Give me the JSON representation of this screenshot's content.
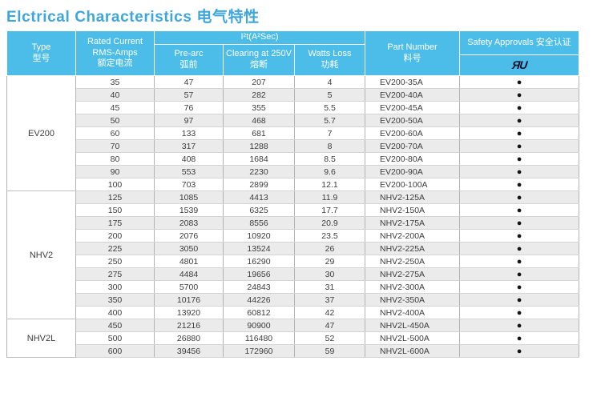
{
  "title": "Elctrical Characteristics 电气特性",
  "colors": {
    "header_bg": "#4cbde8",
    "title": "#3ea6da",
    "zebra": "#ebebeb",
    "approval_dot": "#141414",
    "ul_mark": "#10102e"
  },
  "header": {
    "type": {
      "en": "Type",
      "zh": "型号"
    },
    "rated_current": {
      "line1": "Rated Current",
      "line2": "RMS-Amps",
      "zh": "额定电流"
    },
    "i2t": "I²t(A²Sec)",
    "pre_arc": {
      "en": "Pre-arc",
      "zh": "弧前"
    },
    "clearing": {
      "en": "Clearing at 250V",
      "zh": "熔断"
    },
    "watts_loss": {
      "en": "Watts Loss",
      "zh": "功耗"
    },
    "part_number": {
      "en": "Part Number",
      "zh": "料号"
    },
    "safety": "Safety Approvals 安全认证",
    "ul_mark": "ЯU"
  },
  "approval_dot_glyph": "●",
  "groups": [
    {
      "type": "EV200",
      "rows": [
        {
          "rated_current": "35",
          "pre_arc": "47",
          "clearing_250v": "207",
          "watts_loss": "4",
          "part_number": "EV200-35A",
          "safety_approved": true
        },
        {
          "rated_current": "40",
          "pre_arc": "57",
          "clearing_250v": "282",
          "watts_loss": "5",
          "part_number": "EV200-40A",
          "safety_approved": true
        },
        {
          "rated_current": "45",
          "pre_arc": "76",
          "clearing_250v": "355",
          "watts_loss": "5.5",
          "part_number": "EV200-45A",
          "safety_approved": true
        },
        {
          "rated_current": "50",
          "pre_arc": "97",
          "clearing_250v": "468",
          "watts_loss": "5.7",
          "part_number": "EV200-50A",
          "safety_approved": true
        },
        {
          "rated_current": "60",
          "pre_arc": "133",
          "clearing_250v": "681",
          "watts_loss": "7",
          "part_number": "EV200-60A",
          "safety_approved": true
        },
        {
          "rated_current": "70",
          "pre_arc": "317",
          "clearing_250v": "1288",
          "watts_loss": "8",
          "part_number": "EV200-70A",
          "safety_approved": true
        },
        {
          "rated_current": "80",
          "pre_arc": "408",
          "clearing_250v": "1684",
          "watts_loss": "8.5",
          "part_number": "EV200-80A",
          "safety_approved": true
        },
        {
          "rated_current": "90",
          "pre_arc": "553",
          "clearing_250v": "2230",
          "watts_loss": "9.6",
          "part_number": "EV200-90A",
          "safety_approved": true
        },
        {
          "rated_current": "100",
          "pre_arc": "703",
          "clearing_250v": "2899",
          "watts_loss": "12.1",
          "part_number": "EV200-100A",
          "safety_approved": true
        }
      ]
    },
    {
      "type": "NHV2",
      "rows": [
        {
          "rated_current": "125",
          "pre_arc": "1085",
          "clearing_250v": "4413",
          "watts_loss": "11.9",
          "part_number": "NHV2-125A",
          "safety_approved": true
        },
        {
          "rated_current": "150",
          "pre_arc": "1539",
          "clearing_250v": "6325",
          "watts_loss": "17.7",
          "part_number": "NHV2-150A",
          "safety_approved": true
        },
        {
          "rated_current": "175",
          "pre_arc": "2083",
          "clearing_250v": "8556",
          "watts_loss": "20.9",
          "part_number": "NHV2-175A",
          "safety_approved": true
        },
        {
          "rated_current": "200",
          "pre_arc": "2076",
          "clearing_250v": "10920",
          "watts_loss": "23.5",
          "part_number": "NHV2-200A",
          "safety_approved": true
        },
        {
          "rated_current": "225",
          "pre_arc": "3050",
          "clearing_250v": "13524",
          "watts_loss": "26",
          "part_number": "NHV2-225A",
          "safety_approved": true
        },
        {
          "rated_current": "250",
          "pre_arc": "4801",
          "clearing_250v": "16290",
          "watts_loss": "29",
          "part_number": "NHV2-250A",
          "safety_approved": true
        },
        {
          "rated_current": "275",
          "pre_arc": "4484",
          "clearing_250v": "19656",
          "watts_loss": "30",
          "part_number": "NHV2-275A",
          "safety_approved": true
        },
        {
          "rated_current": "300",
          "pre_arc": "5700",
          "clearing_250v": "24843",
          "watts_loss": "31",
          "part_number": "NHV2-300A",
          "safety_approved": true
        },
        {
          "rated_current": "350",
          "pre_arc": "10176",
          "clearing_250v": "44226",
          "watts_loss": "37",
          "part_number": "NHV2-350A",
          "safety_approved": true
        },
        {
          "rated_current": "400",
          "pre_arc": "13920",
          "clearing_250v": "60812",
          "watts_loss": "42",
          "part_number": "NHV2-400A",
          "safety_approved": true
        }
      ]
    },
    {
      "type": "NHV2L",
      "rows": [
        {
          "rated_current": "450",
          "pre_arc": "21216",
          "clearing_250v": "90900",
          "watts_loss": "47",
          "part_number": "NHV2L-450A",
          "safety_approved": true
        },
        {
          "rated_current": "500",
          "pre_arc": "26880",
          "clearing_250v": "116480",
          "watts_loss": "52",
          "part_number": "NHV2L-500A",
          "safety_approved": true
        },
        {
          "rated_current": "600",
          "pre_arc": "39456",
          "clearing_250v": "172960",
          "watts_loss": "59",
          "part_number": "NHV2L-600A",
          "safety_approved": true
        }
      ]
    }
  ]
}
